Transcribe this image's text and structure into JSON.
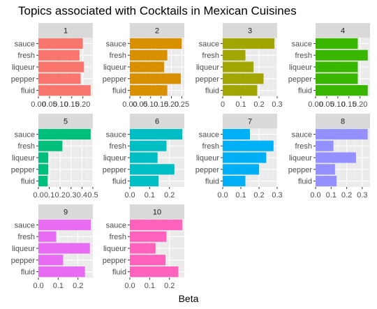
{
  "title": "Topics associated with Cocktails in Mexican Cuisines",
  "xlabel": "Beta",
  "chart_data": {
    "type": "bar",
    "orientation": "horizontal",
    "facet_by": "topic",
    "title": "Topics associated with Cocktails in Mexican Cuisines",
    "xlabel": "Beta",
    "ylabel": "",
    "categories": [
      "sauce",
      "fresh",
      "liqueur",
      "pepper",
      "fluid"
    ],
    "facets": [
      {
        "name": "1",
        "color": "#F8766D",
        "values": [
          0.2,
          0.185,
          0.205,
          0.19,
          0.235
        ],
        "xlim": [
          0,
          0.245
        ],
        "ticks": [
          "0.00",
          "0.05",
          "0.10",
          "0.15",
          "0.20"
        ],
        "tick_values": [
          0,
          0.05,
          0.1,
          0.15,
          0.2
        ]
      },
      {
        "name": "2",
        "color": "#D89000",
        "values": [
          0.25,
          0.18,
          0.165,
          0.245,
          0.18
        ],
        "xlim": [
          0,
          0.262
        ],
        "ticks": [
          "0.00",
          "0.05",
          "0.10",
          "0.15",
          "0.20",
          "0.25"
        ],
        "tick_values": [
          0,
          0.05,
          0.1,
          0.15,
          0.2,
          0.25
        ]
      },
      {
        "name": "3",
        "color": "#A3A500",
        "values": [
          0.285,
          0.125,
          0.17,
          0.225,
          0.19
        ],
        "xlim": [
          0,
          0.3
        ],
        "ticks": [
          "0",
          "0.1",
          "0.2",
          "0.3"
        ],
        "tick_values": [
          0,
          0.1,
          0.2,
          0.3
        ]
      },
      {
        "name": "4",
        "color": "#39B600",
        "values": [
          0.19,
          0.235,
          0.19,
          0.19,
          0.235
        ],
        "xlim": [
          0,
          0.245
        ],
        "ticks": [
          "0.00",
          "0.05",
          "0.10",
          "0.15",
          "0.20"
        ],
        "tick_values": [
          0,
          0.05,
          0.1,
          0.15,
          0.2
        ]
      },
      {
        "name": "5",
        "color": "#00BF7D",
        "values": [
          0.48,
          0.22,
          0.09,
          0.09,
          0.085
        ],
        "xlim": [
          0,
          0.5
        ],
        "ticks": [
          "0.0",
          "0.1",
          "0.2",
          "0.3",
          "0.4",
          "0.5"
        ],
        "tick_values": [
          0,
          0.1,
          0.2,
          0.3,
          0.4,
          0.5
        ]
      },
      {
        "name": "6",
        "color": "#00BFC4",
        "values": [
          0.265,
          0.185,
          0.14,
          0.225,
          0.145
        ],
        "xlim": [
          0,
          0.275
        ],
        "ticks": [
          "0.0",
          "0.1",
          "0.2"
        ],
        "tick_values": [
          0,
          0.1,
          0.2
        ]
      },
      {
        "name": "7",
        "color": "#00B0F6",
        "values": [
          0.15,
          0.28,
          0.24,
          0.2,
          0.125
        ],
        "xlim": [
          0,
          0.3
        ],
        "ticks": [
          "0.0",
          "0.1",
          "0.2",
          "0.3"
        ],
        "tick_values": [
          0,
          0.1,
          0.2,
          0.3
        ]
      },
      {
        "name": "8",
        "color": "#9590FF",
        "values": [
          0.335,
          0.115,
          0.26,
          0.125,
          0.135
        ],
        "xlim": [
          0,
          0.35
        ],
        "ticks": [
          "0.0",
          "0.1",
          "0.2",
          "0.3"
        ],
        "tick_values": [
          0,
          0.1,
          0.2,
          0.3
        ]
      },
      {
        "name": "9",
        "color": "#E76BF3",
        "values": [
          0.265,
          0.09,
          0.26,
          0.125,
          0.235
        ],
        "xlim": [
          0,
          0.275
        ],
        "ticks": [
          "0.0",
          "0.1",
          "0.2"
        ],
        "tick_values": [
          0,
          0.1,
          0.2
        ]
      },
      {
        "name": "10",
        "color": "#FF62BC",
        "values": [
          0.265,
          0.185,
          0.13,
          0.18,
          0.245
        ],
        "xlim": [
          0,
          0.275
        ],
        "ticks": [
          "0.0",
          "0.1",
          "0.2"
        ],
        "tick_values": [
          0,
          0.1,
          0.2
        ]
      }
    ],
    "grid": true,
    "legend": "none"
  }
}
